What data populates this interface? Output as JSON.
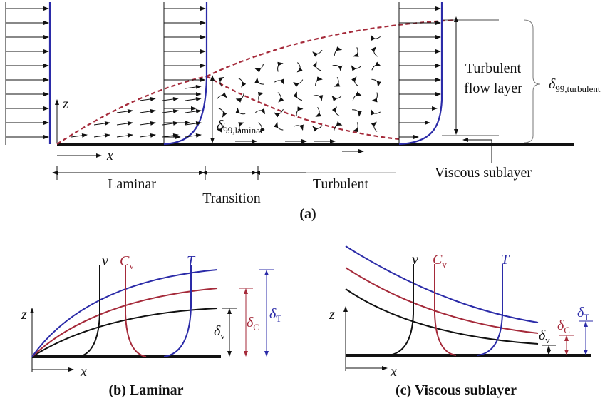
{
  "panel_a": {
    "axis_z": "z",
    "axis_x": "x",
    "regions": [
      "Laminar",
      "Transition",
      "Turbulent"
    ],
    "turbulent_layer": [
      "Turbulent",
      "flow layer"
    ],
    "delta_turbulent": {
      "symbol": "δ",
      "subscript": "99,turbulent"
    },
    "delta_laminar": {
      "symbol": "δ",
      "subscript": "99,laminar"
    },
    "viscous_sublayer": "Viscous sublayer",
    "caption": "(a)"
  },
  "panel_b": {
    "profiles": [
      {
        "symbol": "v"
      },
      {
        "symbol": "C",
        "subscript": "v"
      },
      {
        "symbol": "T"
      }
    ],
    "thickness": [
      {
        "symbol": "δ",
        "subscript": "v"
      },
      {
        "symbol": "δ",
        "subscript": "C"
      },
      {
        "symbol": "δ",
        "subscript": "T"
      }
    ],
    "axis_z": "z",
    "axis_x": "x",
    "caption": "(b) Laminar"
  },
  "panel_c": {
    "profiles": [
      {
        "symbol": "v"
      },
      {
        "symbol": "C",
        "subscript": "v"
      },
      {
        "symbol": "T"
      }
    ],
    "thickness": [
      {
        "symbol": "δ",
        "subscript": "v"
      },
      {
        "symbol": "δ",
        "subscript": "C"
      },
      {
        "symbol": "δ",
        "subscript": "T"
      }
    ],
    "axis_z": "z",
    "axis_x": "x",
    "caption": "(c) Viscous sublayer"
  }
}
